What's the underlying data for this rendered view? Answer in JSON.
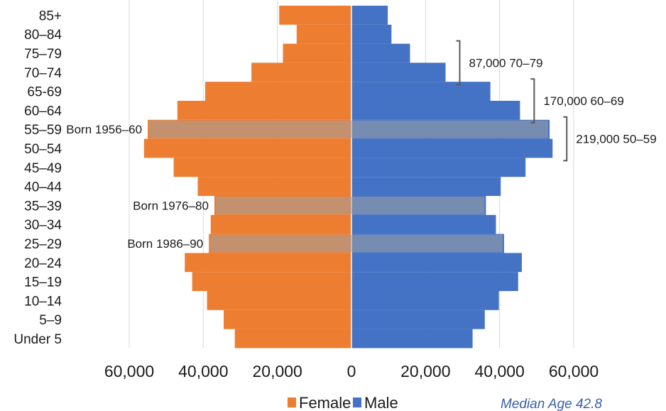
{
  "chart_data": {
    "type": "bar",
    "orientation": "horizontal",
    "title": "",
    "categories": [
      "85+",
      "80–84",
      "75–79",
      "70–74",
      "65-69",
      "60–64",
      "55–59",
      "50–54",
      "45–49",
      "40–44",
      "35–39",
      "30–34",
      "25–29",
      "20–24",
      "15–19",
      "10–14",
      "5–9",
      "Under 5"
    ],
    "series": [
      {
        "name": "Female",
        "color": "#ED7D31",
        "values": [
          19500,
          14800,
          18500,
          27000,
          39500,
          47000,
          55000,
          56000,
          48000,
          41500,
          37000,
          38000,
          38500,
          45000,
          43000,
          39000,
          34500,
          31500
        ]
      },
      {
        "name": "Male",
        "color": "#4472C4",
        "values": [
          9800,
          10800,
          15800,
          25400,
          37500,
          45500,
          53500,
          54300,
          47000,
          40300,
          36300,
          39000,
          41200,
          46000,
          45000,
          39800,
          36000,
          32700
        ]
      }
    ],
    "xlim": [
      -60000,
      60000
    ],
    "x_ticks": [
      "60,000",
      "40,000",
      "20,000",
      "0",
      "20,000",
      "40,000",
      "60,000"
    ],
    "x_tick_values": [
      -60000,
      -40000,
      -20000,
      0,
      20000,
      40000,
      60000
    ],
    "grid": true,
    "legend_position": "bottom",
    "highlights": [
      {
        "category": "55–59",
        "label": "Born 1956–60",
        "color": "#A3A3A3"
      },
      {
        "category": "35–39",
        "label": "Born 1976–80",
        "color": "#A3A3A3"
      },
      {
        "category": "25–29",
        "label": "Born 1986–90",
        "color": "#A3A3A3"
      }
    ],
    "brackets": [
      {
        "categories": [
          "75–79",
          "70–74"
        ],
        "label": "87,000 70–79"
      },
      {
        "categories": [
          "65-69",
          "60–64"
        ],
        "label": "170,000 60–69"
      },
      {
        "categories": [
          "55–59",
          "50–54"
        ],
        "label": "219,000 50–59"
      }
    ],
    "note": "Median Age 42.8"
  }
}
